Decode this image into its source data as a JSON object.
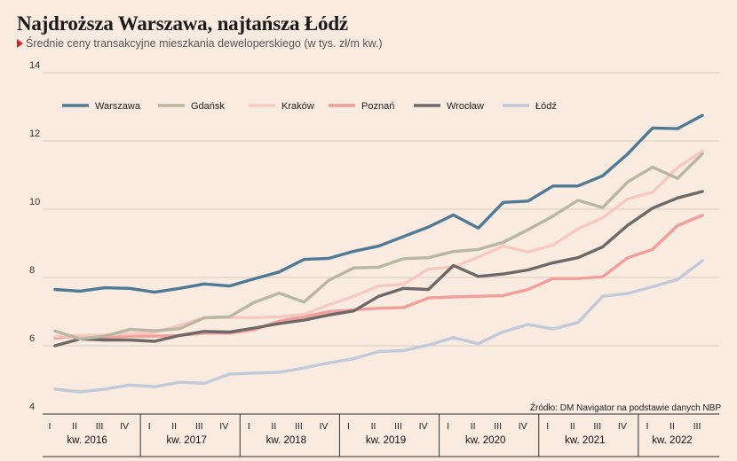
{
  "header": {
    "title": "Najdroższa Warszawa, najtańsza Łódź",
    "subtitle": "Średnie ceny transakcyjne mieszkania deweloperskiego (w tys. zł/m kw.)"
  },
  "source": "Źródło: DM Navigator na podstawie danych NBP",
  "chart_data": {
    "type": "line",
    "title": "Najdroższa Warszawa, najtańsza Łódź",
    "subtitle": "Średnie ceny transakcyjne mieszkania deweloperskiego (w tys. zł/m kw.)",
    "ylim": [
      4,
      14
    ],
    "yticks": [
      4,
      6,
      8,
      10,
      12,
      14
    ],
    "grid": true,
    "legend_position": "top",
    "quarter_labels": [
      "I",
      "II",
      "III",
      "IV",
      "I",
      "II",
      "III",
      "IV",
      "I",
      "II",
      "III",
      "IV",
      "I",
      "II",
      "III",
      "IV",
      "I",
      "II",
      "III",
      "IV",
      "I",
      "II",
      "III",
      "IV",
      "I",
      "II",
      "III"
    ],
    "years": [
      {
        "label": "kw. 2016",
        "quarters": 4
      },
      {
        "label": "kw. 2017",
        "quarters": 4
      },
      {
        "label": "kw. 2018",
        "quarters": 4
      },
      {
        "label": "kw. 2019",
        "quarters": 4
      },
      {
        "label": "kw. 2020",
        "quarters": 4
      },
      {
        "label": "kw. 2021",
        "quarters": 4
      },
      {
        "label": "kw. 2022",
        "quarters": 3
      }
    ],
    "series": [
      {
        "name": "Warszawa",
        "color": "#4f7a96",
        "values": [
          7.65,
          7.6,
          7.7,
          7.68,
          7.57,
          7.68,
          7.81,
          7.75,
          7.96,
          8.16,
          8.53,
          8.56,
          8.77,
          8.92,
          9.2,
          9.48,
          9.83,
          9.45,
          10.2,
          10.24,
          10.68,
          10.68,
          10.98,
          11.62,
          12.38,
          12.36,
          12.75
        ]
      },
      {
        "name": "Gdańsk",
        "color": "#b9b6a4",
        "values": [
          6.43,
          6.2,
          6.28,
          6.48,
          6.44,
          6.5,
          6.82,
          6.85,
          7.27,
          7.54,
          7.28,
          7.92,
          8.28,
          8.3,
          8.55,
          8.58,
          8.76,
          8.82,
          9.03,
          9.4,
          9.8,
          10.26,
          10.05,
          10.8,
          11.23,
          10.9,
          11.62
        ]
      },
      {
        "name": "Kraków",
        "color": "#f8c9c3",
        "values": [
          6.27,
          6.3,
          6.32,
          6.35,
          6.38,
          6.6,
          6.82,
          6.83,
          6.82,
          6.85,
          6.92,
          7.2,
          7.45,
          7.75,
          7.8,
          8.25,
          8.3,
          8.6,
          8.92,
          8.75,
          8.95,
          9.42,
          9.75,
          10.3,
          10.5,
          11.22,
          11.7
        ]
      },
      {
        "name": "Poznań",
        "color": "#f29e9a",
        "values": [
          6.22,
          6.3,
          6.25,
          6.28,
          6.28,
          6.3,
          6.37,
          6.37,
          6.47,
          6.72,
          6.85,
          7.0,
          7.05,
          7.1,
          7.12,
          7.4,
          7.43,
          7.45,
          7.47,
          7.65,
          7.97,
          7.97,
          8.02,
          8.58,
          8.82,
          9.52,
          9.82
        ]
      },
      {
        "name": "Wrocław",
        "color": "#6d6969",
        "values": [
          6.0,
          6.2,
          6.17,
          6.17,
          6.13,
          6.3,
          6.42,
          6.4,
          6.52,
          6.65,
          6.75,
          6.9,
          7.02,
          7.45,
          7.68,
          7.65,
          8.35,
          8.03,
          8.1,
          8.22,
          8.43,
          8.58,
          8.9,
          9.53,
          10.03,
          10.33,
          10.52
        ]
      },
      {
        "name": "Łódź",
        "color": "#c2c9d8",
        "values": [
          4.73,
          4.65,
          4.73,
          4.85,
          4.8,
          4.93,
          4.9,
          5.17,
          5.2,
          5.22,
          5.35,
          5.5,
          5.62,
          5.83,
          5.86,
          6.02,
          6.24,
          6.06,
          6.41,
          6.62,
          6.49,
          6.68,
          7.45,
          7.53,
          7.73,
          7.94,
          8.49
        ]
      }
    ]
  }
}
